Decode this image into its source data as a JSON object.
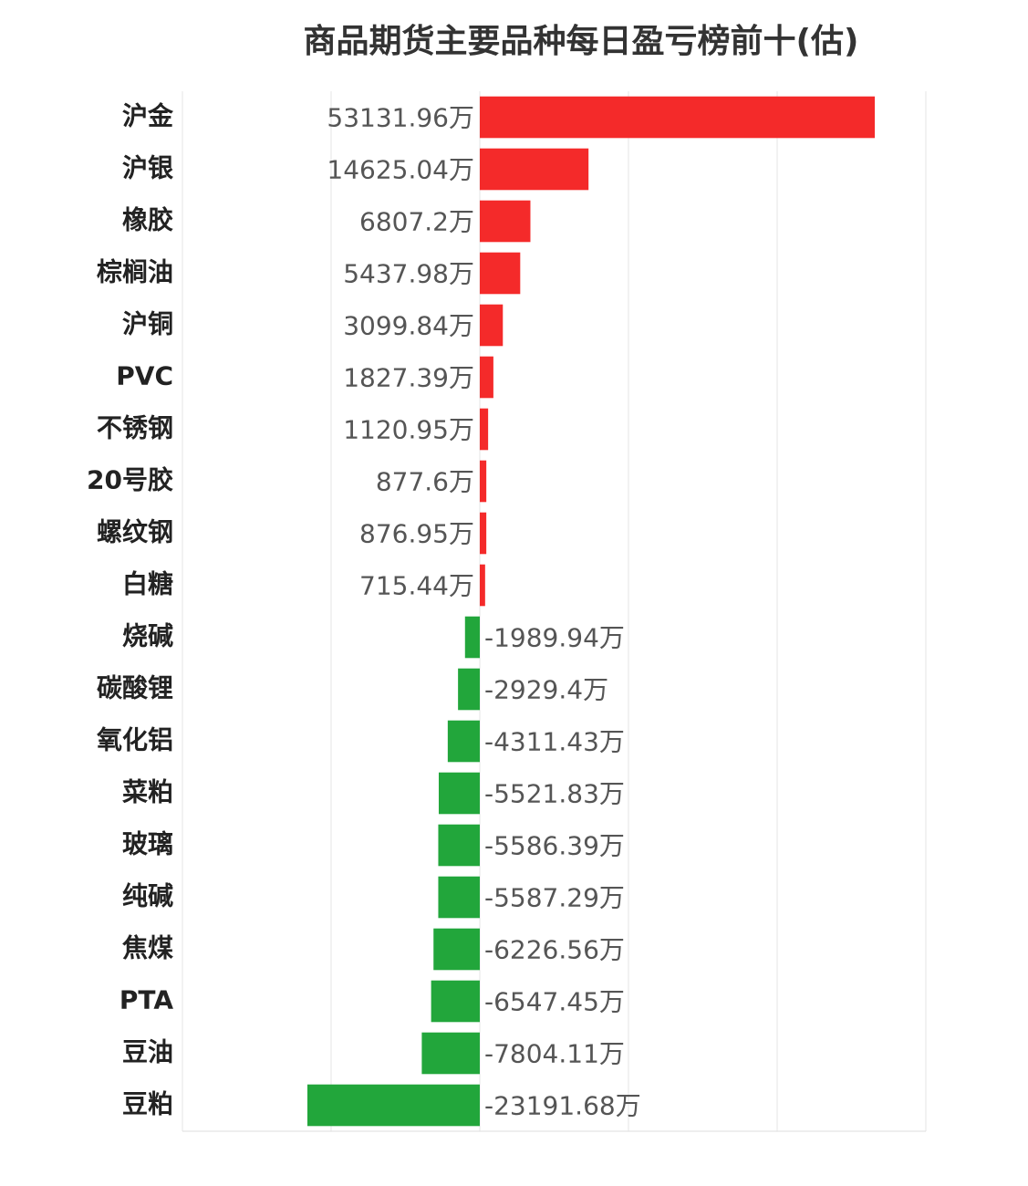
{
  "chart_data": {
    "type": "hbar",
    "title": "商品期货主要品种每日盈亏榜前十(估)",
    "categories": [
      "沪金",
      "沪银",
      "橡胶",
      "棕榈油",
      "沪铜",
      "PVC",
      "不锈钢",
      "20号胶",
      "螺纹钢",
      "白糖",
      "烧碱",
      "碳酸锂",
      "氧化铝",
      "菜粕",
      "玻璃",
      "纯碱",
      "焦煤",
      "PTA",
      "豆油",
      "豆粕"
    ],
    "values": [
      53131.96,
      14625.04,
      6807.2,
      5437.98,
      3099.84,
      1827.39,
      1120.95,
      877.6,
      876.95,
      715.44,
      -1989.94,
      -2929.4,
      -4311.43,
      -5521.83,
      -5586.39,
      -5587.29,
      -6226.56,
      -6547.45,
      -7804.11,
      -23191.68
    ],
    "value_labels": [
      "53131.96万",
      "14625.04万",
      "6807.2万",
      "5437.98万",
      "3099.84万",
      "1827.39万",
      "1120.95万",
      "877.6万",
      "876.95万",
      "715.44万",
      "-1989.94万",
      "-2929.4万",
      "-4311.43万",
      "-5521.83万",
      "-5586.39万",
      "-5587.29万",
      "-6226.56万",
      "-6547.45万",
      "-7804.11万",
      "-23191.68万"
    ],
    "colors": {
      "positive": "#f42a2a",
      "negative": "#22a63b"
    },
    "xlim": [
      -40000,
      60000
    ],
    "xticks": [
      -40000,
      -20000,
      0,
      20000,
      40000,
      60000
    ],
    "grid": true
  }
}
